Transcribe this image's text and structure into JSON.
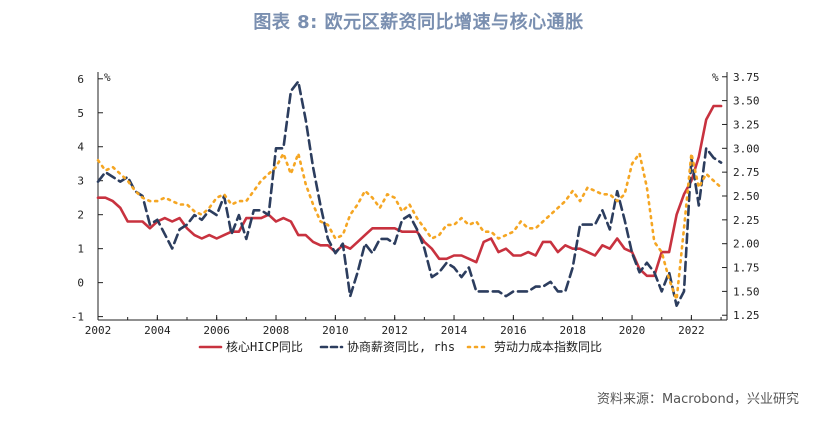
{
  "title": "图表 8:   欧元区薪资同比增速与核心通胀",
  "source": "资料来源：Macrobond，兴业研究",
  "chart_data": {
    "type": "line",
    "left_axis": {
      "unit": "%",
      "ticks": [
        6,
        5,
        4,
        3,
        2,
        1,
        0,
        -1
      ],
      "ylim": [
        -1.1,
        6.2
      ]
    },
    "right_axis": {
      "unit": "%",
      "ticks": [
        "3.75",
        "3.50",
        "3.25",
        "3.00",
        "2.75",
        "2.50",
        "2.25",
        "2.00",
        "1.75",
        "1.50",
        "1.25"
      ],
      "ylim": [
        1.2,
        3.8
      ]
    },
    "x_ticks": [
      "2002",
      "2004",
      "2006",
      "2008",
      "2010",
      "2012",
      "2014",
      "2016",
      "2018",
      "2020",
      "2022"
    ],
    "xlim": [
      2002,
      2023.2
    ],
    "grid": false,
    "legend": [
      "核心HICP同比",
      "协商薪资同比, rhs",
      "劳动力成本指数同比"
    ],
    "series": [
      {
        "name": "核心HICP同比",
        "axis": "left",
        "color": "#c8323f",
        "dash": "solid",
        "x": [
          2002,
          2002.25,
          2002.5,
          2002.75,
          2003,
          2003.25,
          2003.5,
          2003.75,
          2004,
          2004.25,
          2004.5,
          2004.75,
          2005,
          2005.25,
          2005.5,
          2005.75,
          2006,
          2006.25,
          2006.5,
          2006.75,
          2007,
          2007.25,
          2007.5,
          2007.75,
          2008,
          2008.25,
          2008.5,
          2008.75,
          2009,
          2009.25,
          2009.5,
          2009.75,
          2010,
          2010.25,
          2010.5,
          2010.75,
          2011,
          2011.25,
          2011.5,
          2011.75,
          2012,
          2012.25,
          2012.5,
          2012.75,
          2013,
          2013.25,
          2013.5,
          2013.75,
          2014,
          2014.25,
          2014.5,
          2014.75,
          2015,
          2015.25,
          2015.5,
          2015.75,
          2016,
          2016.25,
          2016.5,
          2016.75,
          2017,
          2017.25,
          2017.5,
          2017.75,
          2018,
          2018.25,
          2018.5,
          2018.75,
          2019,
          2019.25,
          2019.5,
          2019.75,
          2020,
          2020.25,
          2020.5,
          2020.75,
          2021,
          2021.25,
          2021.5,
          2021.75,
          2022,
          2022.25,
          2022.5,
          2022.75,
          2023
        ],
        "values": [
          2.5,
          2.5,
          2.4,
          2.2,
          1.8,
          1.8,
          1.8,
          1.6,
          1.8,
          1.9,
          1.8,
          1.9,
          1.6,
          1.4,
          1.3,
          1.4,
          1.3,
          1.4,
          1.5,
          1.5,
          1.9,
          1.9,
          1.9,
          2.0,
          1.8,
          1.9,
          1.8,
          1.4,
          1.4,
          1.2,
          1.1,
          1.1,
          0.9,
          1.1,
          1.0,
          1.2,
          1.4,
          1.6,
          1.6,
          1.6,
          1.6,
          1.5,
          1.5,
          1.5,
          1.2,
          1.0,
          0.7,
          0.7,
          0.8,
          0.8,
          0.7,
          0.6,
          1.2,
          1.3,
          0.9,
          1.0,
          0.8,
          0.8,
          0.9,
          0.8,
          1.2,
          1.2,
          0.9,
          1.1,
          1.0,
          1.0,
          0.9,
          0.8,
          1.1,
          1.0,
          1.3,
          1.0,
          0.9,
          0.4,
          0.2,
          0.2,
          0.9,
          0.9,
          2.0,
          2.6,
          3.0,
          3.7,
          4.8,
          5.2,
          5.2
        ]
      },
      {
        "name": "协商薪资同比, rhs",
        "axis": "right",
        "color": "#2c3d5e",
        "dash": "9,5",
        "x": [
          2002,
          2002.25,
          2002.5,
          2002.75,
          2003,
          2003.25,
          2003.5,
          2003.75,
          2004,
          2004.25,
          2004.5,
          2004.75,
          2005,
          2005.25,
          2005.5,
          2005.75,
          2006,
          2006.25,
          2006.5,
          2006.75,
          2007,
          2007.25,
          2007.5,
          2007.75,
          2008,
          2008.25,
          2008.5,
          2008.75,
          2009,
          2009.25,
          2009.5,
          2009.75,
          2010,
          2010.25,
          2010.5,
          2010.75,
          2011,
          2011.25,
          2011.5,
          2011.75,
          2012,
          2012.25,
          2012.5,
          2012.75,
          2013,
          2013.25,
          2013.5,
          2013.75,
          2014,
          2014.25,
          2014.5,
          2014.75,
          2015,
          2015.25,
          2015.5,
          2015.75,
          2016,
          2016.25,
          2016.5,
          2016.75,
          2017,
          2017.25,
          2017.5,
          2017.75,
          2018,
          2018.25,
          2018.5,
          2018.75,
          2019,
          2019.25,
          2019.5,
          2019.75,
          2020,
          2020.25,
          2020.5,
          2020.75,
          2021,
          2021.25,
          2021.5,
          2021.75,
          2022,
          2022.25,
          2022.5,
          2022.75,
          2023
        ],
        "values": [
          2.65,
          2.75,
          2.7,
          2.65,
          2.7,
          2.55,
          2.5,
          2.2,
          2.25,
          2.1,
          1.95,
          2.15,
          2.2,
          2.3,
          2.25,
          2.35,
          2.3,
          2.5,
          2.1,
          2.3,
          2.05,
          2.35,
          2.35,
          2.3,
          3.0,
          3.0,
          3.6,
          3.7,
          3.3,
          2.8,
          2.4,
          2.05,
          1.9,
          2.0,
          1.45,
          1.7,
          2.0,
          1.9,
          2.05,
          2.05,
          2.0,
          2.25,
          2.3,
          2.15,
          1.95,
          1.65,
          1.7,
          1.8,
          1.75,
          1.65,
          1.75,
          1.5,
          1.5,
          1.5,
          1.5,
          1.45,
          1.5,
          1.5,
          1.5,
          1.55,
          1.55,
          1.6,
          1.5,
          1.5,
          1.75,
          2.2,
          2.2,
          2.2,
          2.35,
          2.15,
          2.55,
          2.25,
          1.9,
          1.7,
          1.8,
          1.7,
          1.5,
          1.7,
          1.35,
          1.5,
          2.9,
          2.4,
          3.0,
          2.9,
          2.85
        ]
      },
      {
        "name": "劳动力成本指数同比",
        "axis": "left",
        "color": "#f5a623",
        "dash": "2,5",
        "x": [
          2002,
          2002.25,
          2002.5,
          2002.75,
          2003,
          2003.25,
          2003.5,
          2003.75,
          2004,
          2004.25,
          2004.5,
          2004.75,
          2005,
          2005.25,
          2005.5,
          2005.75,
          2006,
          2006.25,
          2006.5,
          2006.75,
          2007,
          2007.25,
          2007.5,
          2007.75,
          2008,
          2008.25,
          2008.5,
          2008.75,
          2009,
          2009.25,
          2009.5,
          2009.75,
          2010,
          2010.25,
          2010.5,
          2010.75,
          2011,
          2011.25,
          2011.5,
          2011.75,
          2012,
          2012.25,
          2012.5,
          2012.75,
          2013,
          2013.25,
          2013.5,
          2013.75,
          2014,
          2014.25,
          2014.5,
          2014.75,
          2015,
          2015.25,
          2015.5,
          2015.75,
          2016,
          2016.25,
          2016.5,
          2016.75,
          2017,
          2017.25,
          2017.5,
          2017.75,
          2018,
          2018.25,
          2018.5,
          2018.75,
          2019,
          2019.25,
          2019.5,
          2019.75,
          2020,
          2020.25,
          2020.5,
          2020.75,
          2021,
          2021.25,
          2021.5,
          2021.75,
          2022,
          2022.25,
          2022.5,
          2022.75,
          2023
        ],
        "values": [
          3.6,
          3.3,
          3.4,
          3.2,
          3.0,
          2.7,
          2.5,
          2.4,
          2.4,
          2.5,
          2.4,
          2.3,
          2.3,
          2.1,
          2.0,
          2.2,
          2.5,
          2.6,
          2.3,
          2.4,
          2.4,
          2.7,
          3.0,
          3.2,
          3.4,
          3.8,
          3.2,
          3.8,
          2.9,
          2.3,
          1.8,
          1.7,
          1.3,
          1.4,
          2.0,
          2.3,
          2.7,
          2.5,
          2.2,
          2.6,
          2.5,
          2.1,
          2.3,
          1.9,
          1.6,
          1.3,
          1.4,
          1.7,
          1.7,
          1.9,
          1.7,
          1.8,
          1.5,
          1.5,
          1.3,
          1.4,
          1.5,
          1.8,
          1.6,
          1.6,
          1.8,
          2.0,
          2.2,
          2.4,
          2.7,
          2.4,
          2.8,
          2.7,
          2.6,
          2.6,
          2.4,
          2.6,
          3.5,
          3.8,
          2.8,
          1.2,
          0.9,
          0.1,
          -0.5,
          1.6,
          3.8,
          2.8,
          3.2,
          3.0,
          2.8
        ]
      }
    ]
  }
}
